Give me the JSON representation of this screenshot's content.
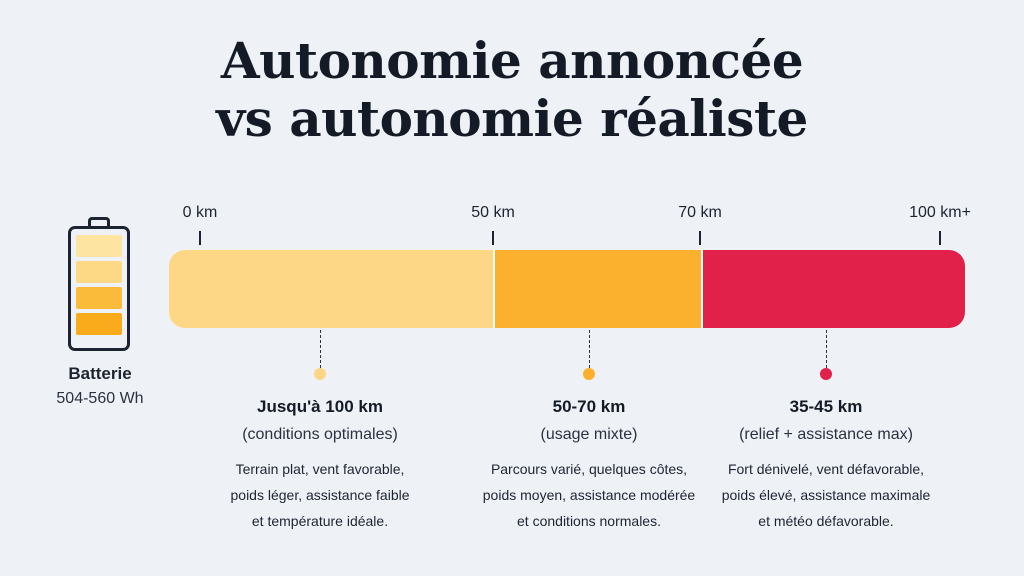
{
  "title": {
    "line1": "Autonomie annoncée",
    "line2": "vs autonomie réaliste"
  },
  "battery": {
    "label": "Batterie",
    "capacity": "504-560 Wh",
    "cell_colors": [
      "#fde4a0",
      "#fdd985",
      "#fbbb3a",
      "#f9ab1c"
    ]
  },
  "scale": {
    "ticks": [
      "0 km",
      "50 km",
      "70 km",
      "100 km+"
    ],
    "segments": [
      {
        "from": 0,
        "to": 50,
        "color": "#fdd785"
      },
      {
        "from": 50,
        "to": 70,
        "color": "#fbb12d"
      },
      {
        "from": 70,
        "to": 100,
        "color": "#e1214a"
      }
    ]
  },
  "zones": [
    {
      "range": "Jusqu'à 100 km",
      "condition": "(conditions optimales)",
      "description": "Terrain plat, vent favorable,\npoids léger, assistance faible\net température idéale.",
      "dot_color": "#fdd785"
    },
    {
      "range": "50-70 km",
      "condition": "(usage mixte)",
      "description": "Parcours varié, quelques côtes,\npoids moyen, assistance modérée\net conditions normales.",
      "dot_color": "#fbb12d"
    },
    {
      "range": "35-45 km",
      "condition": "(relief + assistance max)",
      "description": "Fort dénivelé, vent défavorable,\npoids élevé, assistance maximale\net météo défavorable.",
      "dot_color": "#e1214a"
    }
  ]
}
